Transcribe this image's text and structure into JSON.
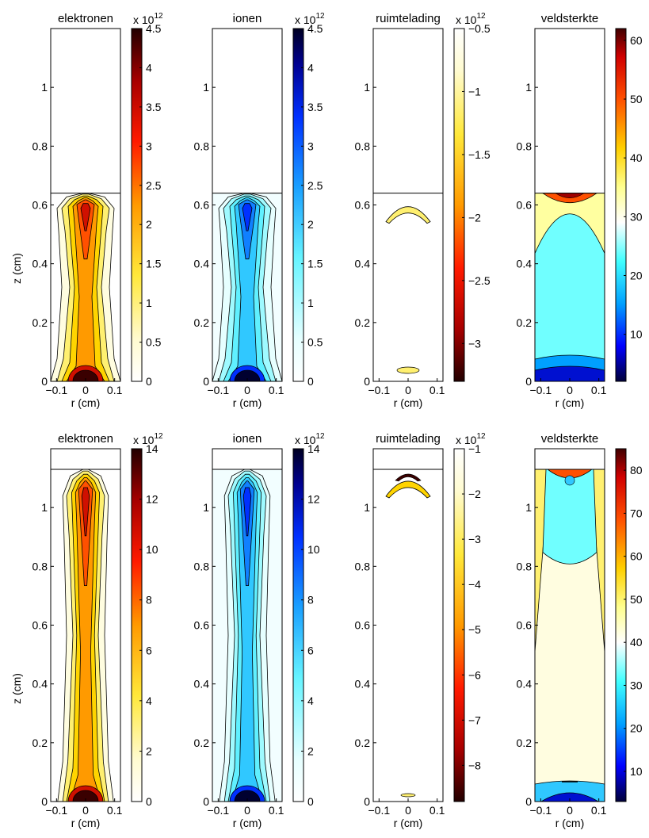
{
  "chart_data": [
    {
      "type": "heatmap",
      "title": "elektronen",
      "xlabel": "r (cm)",
      "ylabel": "z (cm)",
      "xticks": [
        "−0.1",
        "0",
        "0.1"
      ],
      "yticks": [
        "0",
        "0.2",
        "0.4",
        "0.6",
        "0.8",
        "1"
      ],
      "xlim": [
        -0.12,
        0.12
      ],
      "ylim": [
        0,
        1.2
      ],
      "colormap": "hot-reversed",
      "colorbar": {
        "ticks": [
          "0",
          "0.5",
          "1",
          "1.5",
          "2",
          "2.5",
          "3",
          "3.5",
          "4",
          "4.5"
        ],
        "range": [
          0,
          4.5
        ],
        "multiplier": "x 10",
        "exponent": "12"
      },
      "streamer_head_z": 0.64
    },
    {
      "type": "heatmap",
      "title": "ionen",
      "xlabel": "r (cm)",
      "ylabel": "",
      "xticks": [
        "−0.1",
        "0",
        "0.1"
      ],
      "yticks": [
        "0",
        "0.2",
        "0.4",
        "0.6",
        "0.8",
        "1"
      ],
      "xlim": [
        -0.12,
        0.12
      ],
      "ylim": [
        0,
        1.2
      ],
      "colormap": "cyan-blue",
      "colorbar": {
        "ticks": [
          "0",
          "0.5",
          "1",
          "1.5",
          "2",
          "2.5",
          "3",
          "3.5",
          "4",
          "4.5"
        ],
        "range": [
          0,
          4.5
        ],
        "multiplier": "x 10",
        "exponent": "12"
      },
      "streamer_head_z": 0.64
    },
    {
      "type": "heatmap",
      "title": "ruimtelading",
      "xlabel": "r (cm)",
      "ylabel": "",
      "xticks": [
        "−0.1",
        "0",
        "0.1"
      ],
      "yticks": [
        "0",
        "0.2",
        "0.4",
        "0.6",
        "0.8",
        "1"
      ],
      "xlim": [
        -0.12,
        0.12
      ],
      "ylim": [
        0,
        1.2
      ],
      "colormap": "hot-negative",
      "colorbar": {
        "ticks": [
          "−0.5",
          "−1",
          "−1.5",
          "−2",
          "−2.5",
          "−3"
        ],
        "range": [
          -3.3,
          -0.5
        ],
        "multiplier": "x 10",
        "exponent": "12"
      },
      "streamer_head_z": 0.64
    },
    {
      "type": "heatmap",
      "title": "veldsterkte",
      "xlabel": "r (cm)",
      "ylabel": "",
      "xticks": [
        "−0.1",
        "0",
        "0.1"
      ],
      "yticks": [
        "0",
        "0.2",
        "0.4",
        "0.6",
        "0.8",
        "1"
      ],
      "xlim": [
        -0.12,
        0.12
      ],
      "ylim": [
        0,
        1.2
      ],
      "colormap": "jet",
      "colorbar": {
        "ticks": [
          "10",
          "20",
          "30",
          "40",
          "50",
          "60"
        ],
        "range": [
          2,
          62
        ],
        "multiplier": "",
        "exponent": ""
      },
      "streamer_head_z": 0.64
    },
    {
      "type": "heatmap",
      "title": "elektronen",
      "xlabel": "r (cm)",
      "ylabel": "z (cm)",
      "xticks": [
        "−0.1",
        "0",
        "0.1"
      ],
      "yticks": [
        "0",
        "0.2",
        "0.4",
        "0.6",
        "0.8",
        "1"
      ],
      "xlim": [
        -0.12,
        0.12
      ],
      "ylim": [
        0,
        1.2
      ],
      "colormap": "hot-reversed",
      "colorbar": {
        "ticks": [
          "0",
          "2",
          "4",
          "6",
          "8",
          "10",
          "12",
          "14"
        ],
        "range": [
          0,
          14
        ],
        "multiplier": "x 10",
        "exponent": "12"
      },
      "streamer_head_z": 1.13
    },
    {
      "type": "heatmap",
      "title": "ionen",
      "xlabel": "r (cm)",
      "ylabel": "",
      "xticks": [
        "−0.1",
        "0",
        "0.1"
      ],
      "yticks": [
        "0",
        "0.2",
        "0.4",
        "0.6",
        "0.8",
        "1"
      ],
      "xlim": [
        -0.12,
        0.12
      ],
      "ylim": [
        0,
        1.2
      ],
      "colormap": "cyan-blue",
      "colorbar": {
        "ticks": [
          "0",
          "2",
          "4",
          "6",
          "8",
          "10",
          "12",
          "14"
        ],
        "range": [
          0,
          14
        ],
        "multiplier": "x 10",
        "exponent": "12"
      },
      "streamer_head_z": 1.13
    },
    {
      "type": "heatmap",
      "title": "ruimtelading",
      "xlabel": "r (cm)",
      "ylabel": "",
      "xticks": [
        "−0.1",
        "0",
        "0.1"
      ],
      "yticks": [
        "0",
        "0.2",
        "0.4",
        "0.6",
        "0.8",
        "1"
      ],
      "xlim": [
        -0.12,
        0.12
      ],
      "ylim": [
        0,
        1.2
      ],
      "colormap": "hot-negative",
      "colorbar": {
        "ticks": [
          "−1",
          "−2",
          "−3",
          "−4",
          "−5",
          "−6",
          "−7",
          "−8"
        ],
        "range": [
          -8.8,
          -1
        ],
        "multiplier": "x 10",
        "exponent": "12"
      },
      "streamer_head_z": 1.13
    },
    {
      "type": "heatmap",
      "title": "veldsterkte",
      "xlabel": "r (cm)",
      "ylabel": "",
      "xticks": [
        "−0.1",
        "0",
        "0.1"
      ],
      "yticks": [
        "0",
        "0.2",
        "0.4",
        "0.6",
        "0.8",
        "1"
      ],
      "xlim": [
        -0.12,
        0.12
      ],
      "ylim": [
        0,
        1.2
      ],
      "colormap": "jet",
      "colorbar": {
        "ticks": [
          "10",
          "20",
          "30",
          "40",
          "50",
          "60",
          "70",
          "80"
        ],
        "range": [
          3,
          85
        ],
        "multiplier": "",
        "exponent": ""
      },
      "streamer_head_z": 1.13
    }
  ]
}
